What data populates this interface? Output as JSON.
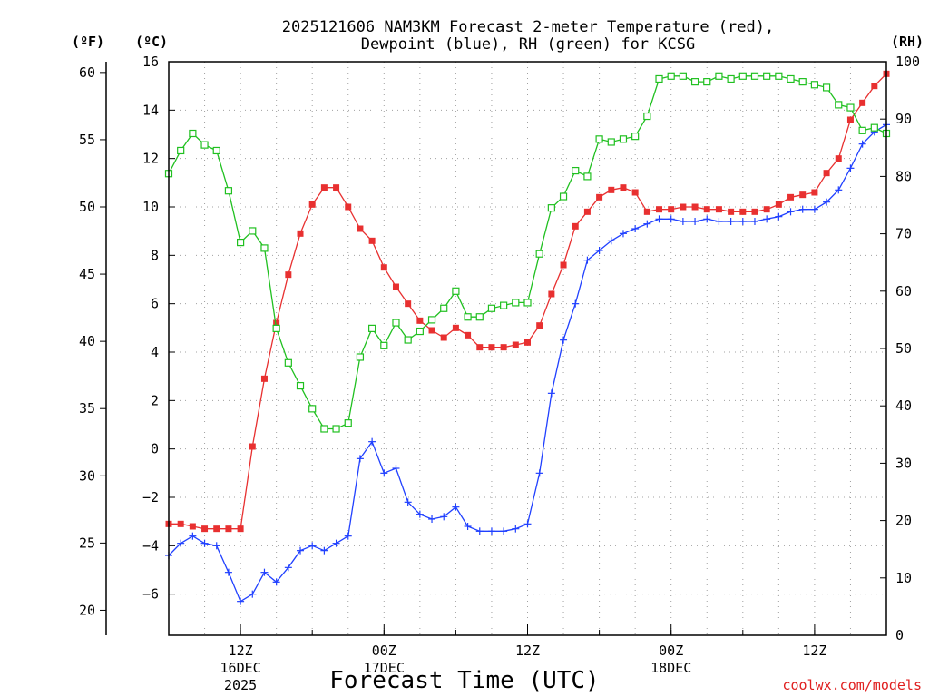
{
  "chart_data": {
    "type": "line",
    "title_line1": "2025121606 NAM3KM Forecast 2-meter Temperature (red),",
    "title_line2": "Dewpoint (blue), RH (green) for KCSG",
    "units": {
      "fahrenheit": "(ºF)",
      "celsius": "(ºC)",
      "rh": "(RH)"
    },
    "xlabel": "Forecast Time (UTC)",
    "credit": "coolwx.com/models",
    "xlim": [
      6,
      66
    ],
    "ylim_c": [
      -7.7,
      16
    ],
    "ylim_rh": [
      0,
      100
    ],
    "ticks_c": [
      "16",
      "14",
      "12",
      "10",
      "8",
      "6",
      "4",
      "2",
      "0",
      "-2",
      "-4",
      "-6"
    ],
    "ticks_f": [
      "60",
      "55",
      "50",
      "45",
      "40",
      "35",
      "30",
      "25",
      "20"
    ],
    "ticks_rh": [
      "100",
      "90",
      "80",
      "70",
      "60",
      "50",
      "40",
      "30",
      "20",
      "10",
      "0"
    ],
    "x_ticks": [
      {
        "x": 12,
        "l1": "12Z",
        "l2": "16DEC",
        "l3": "2025"
      },
      {
        "x": 24,
        "l1": "00Z",
        "l2": "17DEC",
        "l3": ""
      },
      {
        "x": 36,
        "l1": "12Z",
        "l2": "",
        "l3": ""
      },
      {
        "x": 48,
        "l1": "00Z",
        "l2": "18DEC",
        "l3": ""
      },
      {
        "x": 60,
        "l1": "12Z",
        "l2": "",
        "l3": ""
      }
    ],
    "x": [
      6,
      7,
      8,
      9,
      10,
      11,
      12,
      13,
      14,
      15,
      16,
      17,
      18,
      19,
      20,
      21,
      22,
      23,
      24,
      25,
      26,
      27,
      28,
      29,
      30,
      31,
      32,
      33,
      34,
      35,
      36,
      37,
      38,
      39,
      40,
      41,
      42,
      43,
      44,
      45,
      46,
      47,
      48,
      49,
      50,
      51,
      52,
      53,
      54,
      55,
      56,
      57,
      58,
      59,
      60,
      61,
      62,
      63,
      64,
      65,
      66
    ],
    "series": [
      {
        "name": "Temperature (red)",
        "unit": "C",
        "color": "#e83030",
        "marker": "filled-square",
        "values": [
          -3.1,
          -3.1,
          -3.2,
          -3.3,
          -3.3,
          -3.3,
          -3.3,
          0.1,
          2.9,
          5.2,
          7.2,
          8.9,
          10.1,
          10.8,
          10.8,
          10.0,
          9.1,
          8.6,
          7.5,
          6.7,
          6.0,
          5.3,
          4.9,
          4.6,
          5.0,
          4.7,
          4.2,
          4.2,
          4.2,
          4.3,
          4.4,
          5.1,
          6.4,
          7.6,
          9.2,
          9.8,
          10.4,
          10.7,
          10.8,
          10.6,
          9.8,
          9.9,
          9.9,
          10.0,
          10.0,
          9.9,
          9.9,
          9.8,
          9.8,
          9.8,
          9.9,
          10.1,
          10.4,
          10.5,
          10.6,
          11.4,
          12.0,
          13.6,
          14.3,
          15.0,
          15.5
        ]
      },
      {
        "name": "Dewpoint (blue)",
        "unit": "C",
        "color": "#2040ff",
        "marker": "plus",
        "values": [
          -4.4,
          -3.9,
          -3.6,
          -3.9,
          -4.0,
          -5.1,
          -6.3,
          -6.0,
          -5.1,
          -5.5,
          -4.9,
          -4.2,
          -4.0,
          -4.2,
          -3.9,
          -3.6,
          -0.4,
          0.3,
          -1.0,
          -0.8,
          -2.2,
          -2.7,
          -2.9,
          -2.8,
          -2.4,
          -3.2,
          -3.4,
          -3.4,
          -3.4,
          -3.3,
          -3.1,
          -1.0,
          2.3,
          4.5,
          6.0,
          7.8,
          8.2,
          8.6,
          8.9,
          9.1,
          9.3,
          9.5,
          9.5,
          9.4,
          9.4,
          9.5,
          9.4,
          9.4,
          9.4,
          9.4,
          9.5,
          9.6,
          9.8,
          9.9,
          9.9,
          10.2,
          10.7,
          11.6,
          12.6,
          13.1,
          13.4
        ]
      },
      {
        "name": "RH (green)",
        "unit": "%",
        "color": "#20c020",
        "marker": "open-square",
        "values": [
          80.5,
          84.5,
          87.5,
          85.5,
          84.5,
          77.5,
          68.5,
          70.5,
          67.5,
          53.5,
          47.5,
          43.5,
          39.5,
          36.0,
          36.0,
          37.0,
          48.5,
          53.5,
          50.5,
          54.5,
          51.5,
          53.0,
          55.0,
          57.0,
          60.0,
          55.5,
          55.5,
          57.0,
          57.5,
          58.0,
          58.0,
          66.5,
          74.5,
          76.5,
          81.0,
          80.0,
          86.5,
          86.0,
          86.5,
          87.0,
          90.5,
          97.0,
          97.5,
          97.5,
          96.5,
          96.5,
          97.5,
          97.0,
          97.5,
          97.5,
          97.5,
          97.5,
          97.0,
          96.5,
          96.0,
          95.5,
          92.5,
          92.0,
          88.0,
          88.5,
          87.5
        ]
      }
    ]
  }
}
